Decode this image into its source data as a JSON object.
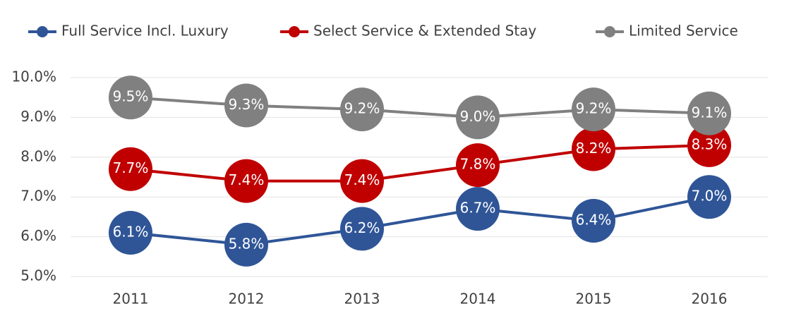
{
  "chart_data": {
    "type": "line",
    "categories": [
      "2011",
      "2012",
      "2013",
      "2014",
      "2015",
      "2016"
    ],
    "series": [
      {
        "name": "Full Service Incl. Luxury",
        "color": "#2f5597",
        "values": [
          6.1,
          5.8,
          6.2,
          6.7,
          6.4,
          7.0
        ],
        "value_labels": [
          "6.1%",
          "5.8%",
          "6.2%",
          "6.7%",
          "6.4%",
          "7.0%"
        ]
      },
      {
        "name": "Select Service & Extended Stay",
        "color": "#c00000",
        "values": [
          7.7,
          7.4,
          7.4,
          7.8,
          8.2,
          8.3
        ],
        "value_labels": [
          "7.7%",
          "7.4%",
          "7.4%",
          "7.8%",
          "8.2%",
          "8.3%"
        ]
      },
      {
        "name": "Limited Service",
        "color": "#808080",
        "values": [
          9.5,
          9.3,
          9.2,
          9.0,
          9.2,
          9.1
        ],
        "value_labels": [
          "9.5%",
          "9.3%",
          "9.2%",
          "9.0%",
          "9.2%",
          "9.1%"
        ]
      }
    ],
    "ylim": [
      5,
      10
    ],
    "yticks": [
      {
        "value": 5,
        "label": "5.0%"
      },
      {
        "value": 6,
        "label": "6.0%"
      },
      {
        "value": 7,
        "label": "7.0%"
      },
      {
        "value": 8,
        "label": "8.0%"
      },
      {
        "value": 9,
        "label": "9.0%"
      },
      {
        "value": 10,
        "label": "10.0%"
      }
    ],
    "grid": true,
    "legend": "top"
  }
}
